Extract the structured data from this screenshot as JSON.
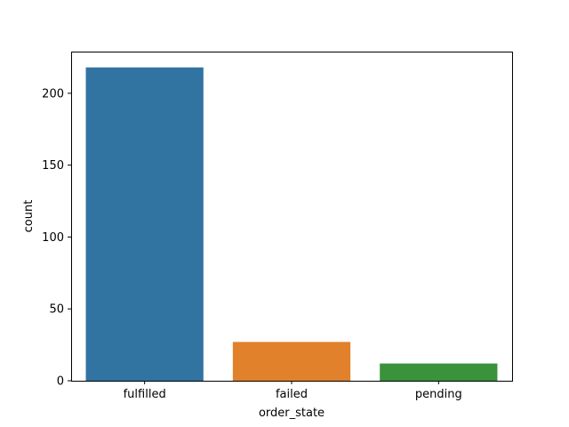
{
  "chart_data": {
    "type": "bar",
    "title": "",
    "xlabel": "order_state",
    "ylabel": "count",
    "categories": [
      "fulfilled",
      "failed",
      "pending"
    ],
    "values": [
      218,
      27,
      12
    ],
    "colors": [
      "#3274a1",
      "#e1812c",
      "#3a923a"
    ],
    "ylim": [
      0,
      229
    ],
    "yticks": [
      0,
      50,
      100,
      150,
      200
    ],
    "grid": false,
    "legend": "none"
  }
}
